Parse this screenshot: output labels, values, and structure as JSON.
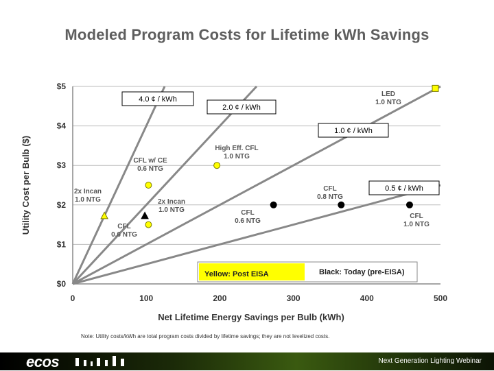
{
  "slide": {
    "title": "Modeled Program Costs for Lifetime kWh Savings",
    "note": "Note: Utility costs/kWh are total program costs divided by lifetime savings; they are not levelized costs.",
    "footer": {
      "brand": "ecos",
      "text": "Next Generation Lighting Webinar"
    }
  },
  "chart_data": {
    "type": "scatter",
    "xlabel": "Net Lifetime Energy Savings per Bulb (kWh)",
    "ylabel": "Utility Cost per Bulb ($)",
    "xlim": [
      0,
      500
    ],
    "ylim": [
      0,
      5
    ],
    "x_ticks": [
      "0",
      "100",
      "200",
      "300",
      "400",
      "500"
    ],
    "y_ticks": [
      "$0",
      "$1",
      "$2",
      "$3",
      "$4",
      "$5"
    ],
    "grid": "horizontal",
    "colors": {
      "yellow": "#ffff00",
      "point_outline": "#7a7a00",
      "black": "#000000",
      "rate_lines": "#888888",
      "axis": "#888888",
      "grid": "#bbbbbb"
    },
    "rate_lines": [
      {
        "label": "4.0 ¢ / kWh",
        "slope": 0.04
      },
      {
        "label": "2.0 ¢ / kWh",
        "slope": 0.02
      },
      {
        "label": "1.0 ¢ / kWh",
        "slope": 0.01
      },
      {
        "label": "0.5 ¢ / kWh",
        "slope": 0.005
      }
    ],
    "series": [
      {
        "name": "Yellow: Post EISA",
        "points": [
          {
            "label": [
              "2x Incan",
              "1.0 NTG"
            ],
            "x": 43,
            "y": 1.72,
            "marker": "triangle"
          },
          {
            "label": [
              "CFL",
              "0.6 NTG"
            ],
            "x": 103,
            "y": 1.5,
            "marker": "circle"
          },
          {
            "label": [
              "CFL w/ CE",
              "0.6 NTG"
            ],
            "x": 103,
            "y": 2.5,
            "marker": "circle"
          },
          {
            "label": [
              "High Eff. CFL",
              "1.0 NTG"
            ],
            "x": 196,
            "y": 3.0,
            "marker": "circle"
          },
          {
            "label": [
              "LED",
              "1.0 NTG"
            ],
            "x": 493,
            "y": 4.95,
            "marker": "square"
          }
        ]
      },
      {
        "name": "Black: Today (pre-EISA)",
        "points": [
          {
            "label": [
              "2x Incan",
              "1.0 NTG"
            ],
            "x": 98,
            "y": 1.72,
            "marker": "triangle"
          },
          {
            "label": [
              "CFL",
              "0.6 NTG"
            ],
            "x": 273,
            "y": 2.0,
            "marker": "circle"
          },
          {
            "label": [
              "CFL",
              "0.8 NTG"
            ],
            "x": 365,
            "y": 2.0,
            "marker": "circle"
          },
          {
            "label": [
              "CFL",
              "1.0 NTG"
            ],
            "x": 458,
            "y": 2.0,
            "marker": "circle"
          }
        ]
      }
    ]
  }
}
